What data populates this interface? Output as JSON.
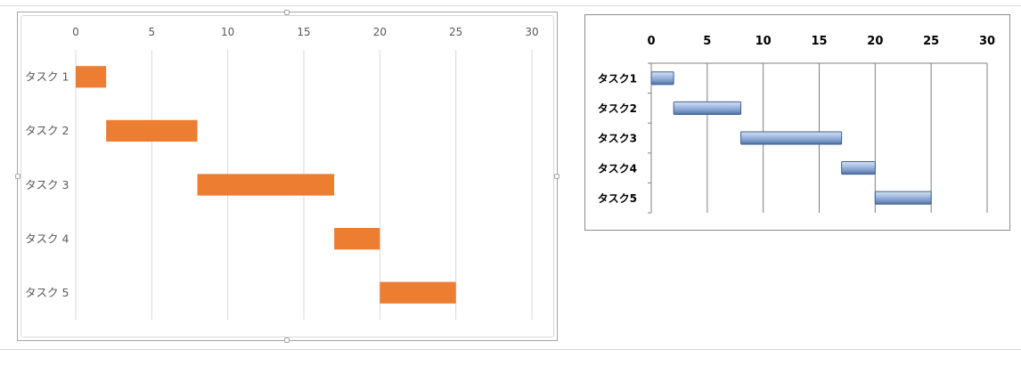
{
  "chart_data": [
    {
      "type": "bar",
      "style": "gantt",
      "orientation": "horizontal",
      "categories": [
        "タスク 1",
        "タスク 2",
        "タスク 3",
        "タスク 4",
        "タスク 5"
      ],
      "start": [
        0,
        2,
        8,
        17,
        20
      ],
      "values": [
        2,
        6,
        9,
        3,
        5
      ],
      "x_ticks": [
        "0",
        "5",
        "10",
        "15",
        "20",
        "25",
        "30"
      ],
      "xlim": [
        0,
        30
      ],
      "x_axis_position": "top",
      "grid": true,
      "bar_color": "#ED7D31",
      "grid_color": "#D9D9D9",
      "label_color": "#595959"
    },
    {
      "type": "bar",
      "style": "gantt",
      "orientation": "horizontal",
      "categories": [
        "タスク1",
        "タスク2",
        "タスク3",
        "タスク4",
        "タスク5"
      ],
      "start": [
        0,
        2,
        8,
        17,
        20
      ],
      "values": [
        2,
        6,
        9,
        3,
        5
      ],
      "x_ticks": [
        "0",
        "5",
        "10",
        "15",
        "20",
        "25",
        "30"
      ],
      "xlim": [
        0,
        30
      ],
      "x_axis_position": "top",
      "grid": true,
      "bar_color": "#8EA9DB",
      "bar_edge_color": "#3F5F8F",
      "grid_color": "#808080",
      "label_color": "#000000"
    }
  ]
}
